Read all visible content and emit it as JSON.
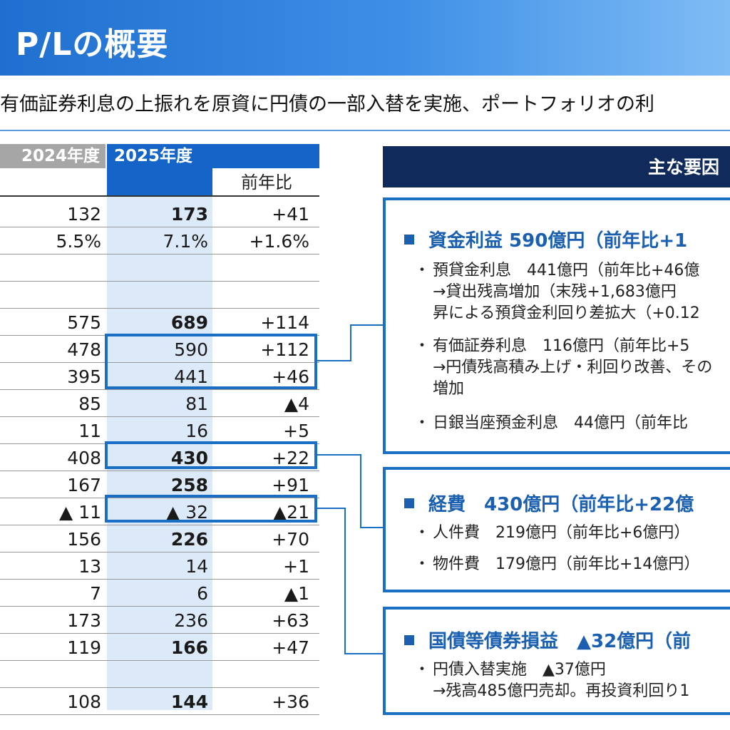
{
  "header": {
    "title": "P/Lの概要"
  },
  "subtitle": "有価証券利息の上振れを原資に円債の一部入替を実施、ポートフォリオの利",
  "table": {
    "col_2024": "2024年度",
    "col_2025": "2025年度",
    "col_yoy": "前年比",
    "rows": [
      {
        "v2024": "132",
        "v2025": "173",
        "yoy": "+41"
      },
      {
        "v2024": "5.5%",
        "v2025": "7.1%",
        "yoy": "+1.6%"
      },
      {
        "v2024": "575",
        "v2025": "689",
        "yoy": "+114"
      },
      {
        "v2024": "478",
        "v2025": "590",
        "yoy": "+112"
      },
      {
        "v2024": "395",
        "v2025": "441",
        "yoy": "+46"
      },
      {
        "v2024": "85",
        "v2025": "81",
        "yoy": "▲4"
      },
      {
        "v2024": "11",
        "v2025": "16",
        "yoy": "+5"
      },
      {
        "v2024": "408",
        "v2025": "430",
        "yoy": "+22"
      },
      {
        "v2024": "167",
        "v2025": "258",
        "yoy": "+91"
      },
      {
        "v2024": "▲ 11",
        "v2025": "▲ 32",
        "yoy": "▲21"
      },
      {
        "v2024": "156",
        "v2025": "226",
        "yoy": "+70"
      },
      {
        "v2024": "13",
        "v2025": "14",
        "yoy": "+1"
      },
      {
        "v2024": "7",
        "v2025": "6",
        "yoy": "▲1"
      },
      {
        "v2024": "173",
        "v2025": "236",
        "yoy": "+63"
      },
      {
        "v2024": "119",
        "v2025": "166",
        "yoy": "+47"
      },
      {
        "v2024": "108",
        "v2025": "144",
        "yoy": "+36"
      }
    ]
  },
  "factors": {
    "header": "主な要因",
    "box1": {
      "title": "資金利益 590億円（前年比+1",
      "b1a": "預貸金利息　441億円（前年比+46億",
      "b1b": "→貸出残高増加（末残+1,683億円",
      "b1c": "昇による預貸金利回り差拡大（+0.12",
      "b2a": "有価証券利息　116億円（前年比+5",
      "b2b": "→円債残高積み上げ・利回り改善、その",
      "b2c": "増加",
      "b3a": "日銀当座預金利息　44億円（前年比"
    },
    "box2": {
      "title": "経費　430億円（前年比+22億",
      "b1a": "人件費　219億円（前年比+6億円）",
      "b2a": "物件費　179億円（前年比+14億円）"
    },
    "box3": {
      "title": "国債等債券損益　▲32億円（前",
      "b1a": "円債入替実施　▲37億円",
      "b1b": "→残高485億円売却。再投資利回り1"
    }
  }
}
